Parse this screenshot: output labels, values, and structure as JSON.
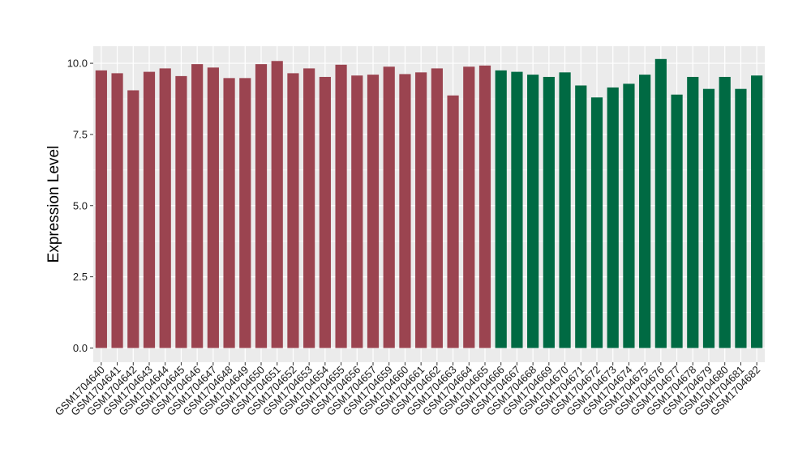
{
  "chart_data": {
    "type": "bar",
    "title": "",
    "xlabel": "",
    "ylabel": "Expression Level",
    "ylim": [
      -0.5,
      10.6
    ],
    "yticks": [
      0.0,
      2.5,
      5.0,
      7.5,
      10.0
    ],
    "ytick_labels": [
      "0.0",
      "2.5",
      "5.0",
      "7.5",
      "10.0"
    ],
    "grid": true,
    "legend": "none",
    "panel_background": "#ebebeb",
    "grid_color": "#ffffff",
    "categories": [
      "GSM1704640",
      "GSM1704641",
      "GSM1704642",
      "GSM1704643",
      "GSM1704644",
      "GSM1704645",
      "GSM1704646",
      "GSM1704647",
      "GSM1704648",
      "GSM1704649",
      "GSM1704650",
      "GSM1704651",
      "GSM1704652",
      "GSM1704653",
      "GSM1704654",
      "GSM1704655",
      "GSM1704656",
      "GSM1704657",
      "GSM1704659",
      "GSM1704660",
      "GSM1704661",
      "GSM1704662",
      "GSM1704663",
      "GSM1704664",
      "GSM1704665",
      "GSM1704666",
      "GSM1704667",
      "GSM1704668",
      "GSM1704669",
      "GSM1704670",
      "GSM1704671",
      "GSM1704672",
      "GSM1704673",
      "GSM1704674",
      "GSM1704675",
      "GSM1704676",
      "GSM1704677",
      "GSM1704678",
      "GSM1704679",
      "GSM1704680",
      "GSM1704681",
      "GSM1704682"
    ],
    "values": [
      9.75,
      9.65,
      9.05,
      9.7,
      9.82,
      9.55,
      9.97,
      9.85,
      9.48,
      9.48,
      9.97,
      10.08,
      9.65,
      9.82,
      9.52,
      9.95,
      9.57,
      9.6,
      9.88,
      9.62,
      9.68,
      9.82,
      8.87,
      9.88,
      9.92,
      9.75,
      9.7,
      9.6,
      9.52,
      9.68,
      9.22,
      8.8,
      9.15,
      9.28,
      9.6,
      10.15,
      8.9,
      9.52,
      9.1,
      9.52,
      9.1,
      9.57
    ],
    "bar_colors": [
      "#9b4450",
      "#9b4450",
      "#9b4450",
      "#9b4450",
      "#9b4450",
      "#9b4450",
      "#9b4450",
      "#9b4450",
      "#9b4450",
      "#9b4450",
      "#9b4450",
      "#9b4450",
      "#9b4450",
      "#9b4450",
      "#9b4450",
      "#9b4450",
      "#9b4450",
      "#9b4450",
      "#9b4450",
      "#9b4450",
      "#9b4450",
      "#9b4450",
      "#9b4450",
      "#9b4450",
      "#9b4450",
      "#006a43",
      "#006a43",
      "#006a43",
      "#006a43",
      "#006a43",
      "#006a43",
      "#006a43",
      "#006a43",
      "#006a43",
      "#006a43",
      "#006a43",
      "#006a43",
      "#006a43",
      "#006a43",
      "#006a43",
      "#006a43",
      "#006a43"
    ]
  }
}
